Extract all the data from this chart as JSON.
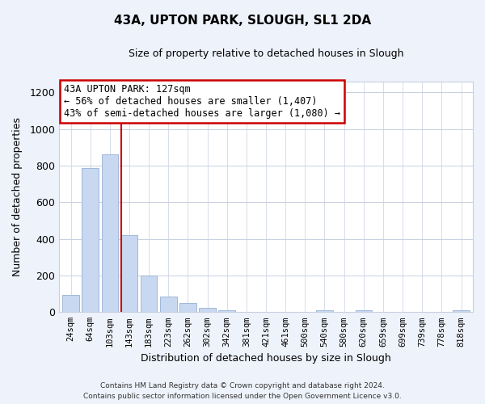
{
  "title": "43A, UPTON PARK, SLOUGH, SL1 2DA",
  "subtitle": "Size of property relative to detached houses in Slough",
  "xlabel": "Distribution of detached houses by size in Slough",
  "ylabel": "Number of detached properties",
  "bar_color": "#c8d8f0",
  "bar_edge_color": "#a0b8d8",
  "categories": [
    "24sqm",
    "64sqm",
    "103sqm",
    "143sqm",
    "183sqm",
    "223sqm",
    "262sqm",
    "302sqm",
    "342sqm",
    "381sqm",
    "421sqm",
    "461sqm",
    "500sqm",
    "540sqm",
    "580sqm",
    "620sqm",
    "659sqm",
    "699sqm",
    "739sqm",
    "778sqm",
    "818sqm"
  ],
  "values": [
    95,
    785,
    860,
    420,
    200,
    85,
    52,
    22,
    8,
    3,
    2,
    1,
    0,
    10,
    0,
    10,
    0,
    0,
    0,
    0,
    10
  ],
  "ylim": [
    0,
    1260
  ],
  "yticks": [
    0,
    200,
    400,
    600,
    800,
    1000,
    1200
  ],
  "annotation_line1": "43A UPTON PARK: 127sqm",
  "annotation_line2": "← 56% of detached houses are smaller (1,407)",
  "annotation_line3": "43% of semi-detached houses are larger (1,080) →",
  "vline_x": 2.6,
  "annotation_box_color": "#ffffff",
  "annotation_box_edge_color": "#cc0000",
  "footer_line1": "Contains HM Land Registry data © Crown copyright and database right 2024.",
  "footer_line2": "Contains public sector information licensed under the Open Government Licence v3.0.",
  "background_color": "#eef2fb",
  "plot_bg_color": "#ffffff",
  "grid_color": "#c8d0e0"
}
